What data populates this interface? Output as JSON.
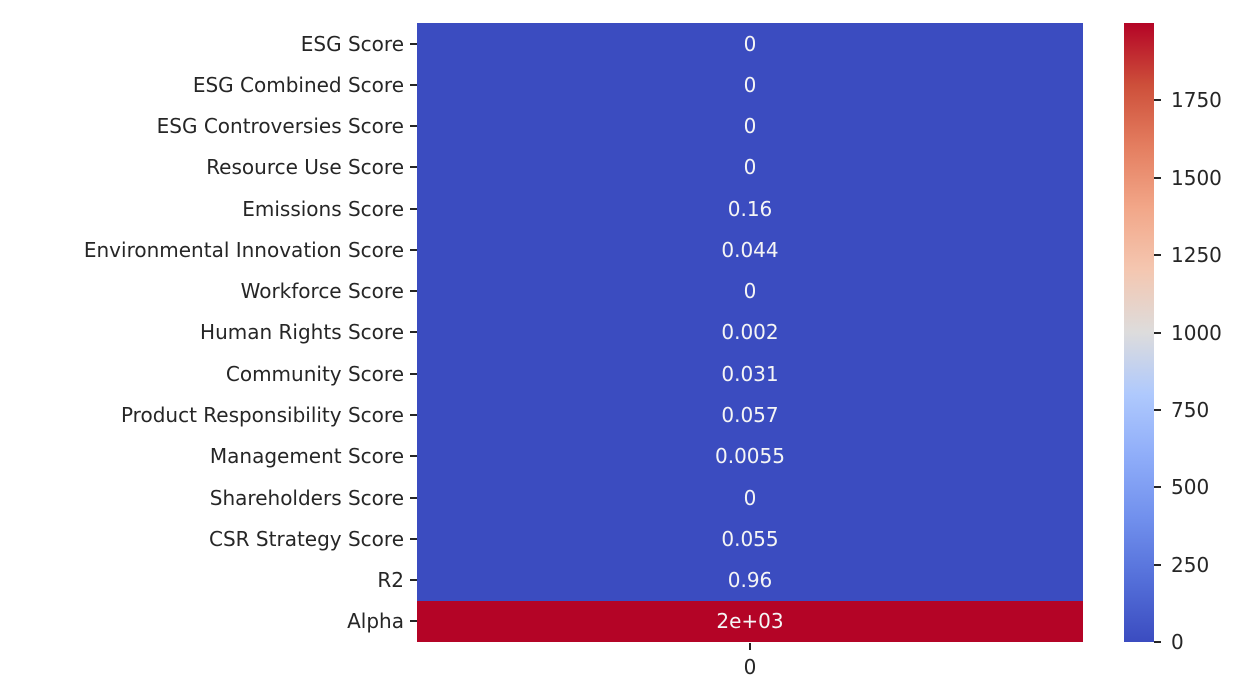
{
  "figure": {
    "background_color": "#ffffff",
    "text_color": "#262626"
  },
  "chart_data": {
    "type": "heatmap",
    "title": "",
    "xlabel": "",
    "ylabel": "",
    "rows": [
      "ESG Score",
      "ESG Combined Score",
      "ESG Controversies Score",
      "Resource Use Score",
      "Emissions Score",
      "Environmental Innovation Score",
      "Workforce Score",
      "Human Rights Score",
      "Community Score",
      "Product Responsibility Score",
      "Management Score",
      "Shareholders Score",
      "CSR Strategy Score",
      "R2",
      "Alpha"
    ],
    "columns": [
      "0"
    ],
    "values": [
      [
        0
      ],
      [
        0
      ],
      [
        0
      ],
      [
        0
      ],
      [
        0.16
      ],
      [
        0.044
      ],
      [
        0
      ],
      [
        0.002
      ],
      [
        0.031
      ],
      [
        0.057
      ],
      [
        0.0055
      ],
      [
        0
      ],
      [
        0.055
      ],
      [
        0.96
      ],
      [
        2000
      ]
    ],
    "annotations": [
      [
        "0"
      ],
      [
        "0"
      ],
      [
        "0"
      ],
      [
        "0"
      ],
      [
        "0.16"
      ],
      [
        "0.044"
      ],
      [
        "0"
      ],
      [
        "0.002"
      ],
      [
        "0.031"
      ],
      [
        "0.057"
      ],
      [
        "0.0055"
      ],
      [
        "0"
      ],
      [
        "0.055"
      ],
      [
        "0.96"
      ],
      [
        "2e+03"
      ]
    ],
    "vmin": 0,
    "vmax": 2000,
    "colormap": "coolwarm",
    "colormap_stops": [
      {
        "pos": 0.0,
        "color": "#3b4cc0"
      },
      {
        "pos": 0.1,
        "color": "#546fd9"
      },
      {
        "pos": 0.2,
        "color": "#7190ed"
      },
      {
        "pos": 0.3,
        "color": "#8fadf9"
      },
      {
        "pos": 0.4,
        "color": "#afc9fd"
      },
      {
        "pos": 0.5,
        "color": "#dddcdc"
      },
      {
        "pos": 0.6,
        "color": "#f4c7b1"
      },
      {
        "pos": 0.7,
        "color": "#f2a789"
      },
      {
        "pos": 0.8,
        "color": "#e47e60"
      },
      {
        "pos": 0.9,
        "color": "#cd4f3a"
      },
      {
        "pos": 1.0,
        "color": "#b40426"
      }
    ],
    "cell_color_low": "#3b4cc0",
    "cell_color_high": "#b40426",
    "annotation_color": "#f5f5f5",
    "colorbar_ticks": [
      0,
      250,
      500,
      750,
      1000,
      1250,
      1500,
      1750
    ],
    "colorbar_tick_labels": [
      "0",
      "250",
      "500",
      "750",
      "1000",
      "1250",
      "1500",
      "1750"
    ],
    "legend": "none",
    "grid": false
  }
}
